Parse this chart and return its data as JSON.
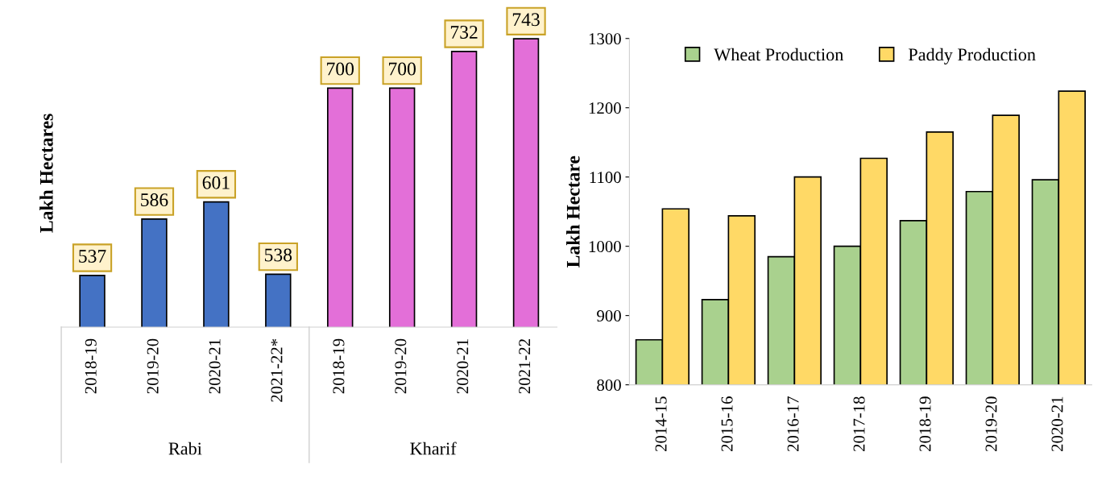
{
  "chart_data": [
    {
      "type": "bar",
      "ylabel": "Lakh Hectares",
      "categories": [
        "2018-19",
        "2019-20",
        "2020-21",
        "2021-22*",
        "2018-19",
        "2019-20",
        "2020-21",
        "2021-22"
      ],
      "values": [
        537,
        586,
        601,
        538,
        700,
        700,
        732,
        743
      ],
      "colors": [
        "#4472c4",
        "#4472c4",
        "#4472c4",
        "#4472c4",
        "#e36fd8",
        "#e36fd8",
        "#e36fd8",
        "#e36fd8"
      ],
      "data_labels": true,
      "ylim": [
        492,
        760
      ],
      "tick_labels": "x",
      "annotations": [
        "Rabi",
        "Kharif"
      ]
    },
    {
      "type": "bar",
      "ylabel": "Lakh Hectare",
      "categories": [
        "2014-15",
        "2015-16",
        "2016-17",
        "2017-18",
        "2018-19",
        "2019-20",
        "2020-21"
      ],
      "series": [
        {
          "name": "Wheat Production",
          "color": "#a9d18e",
          "values": [
            865,
            923,
            985,
            1000,
            1037,
            1079,
            1096
          ]
        },
        {
          "name": "Paddy Production",
          "color": "#ffd966",
          "values": [
            1054,
            1044,
            1100,
            1127,
            1165,
            1189,
            1224
          ]
        }
      ],
      "ylim": [
        800,
        1300
      ],
      "yticks": [
        800,
        900,
        1000,
        1100,
        1200,
        1300
      ],
      "legend": "top",
      "grid": false
    }
  ]
}
